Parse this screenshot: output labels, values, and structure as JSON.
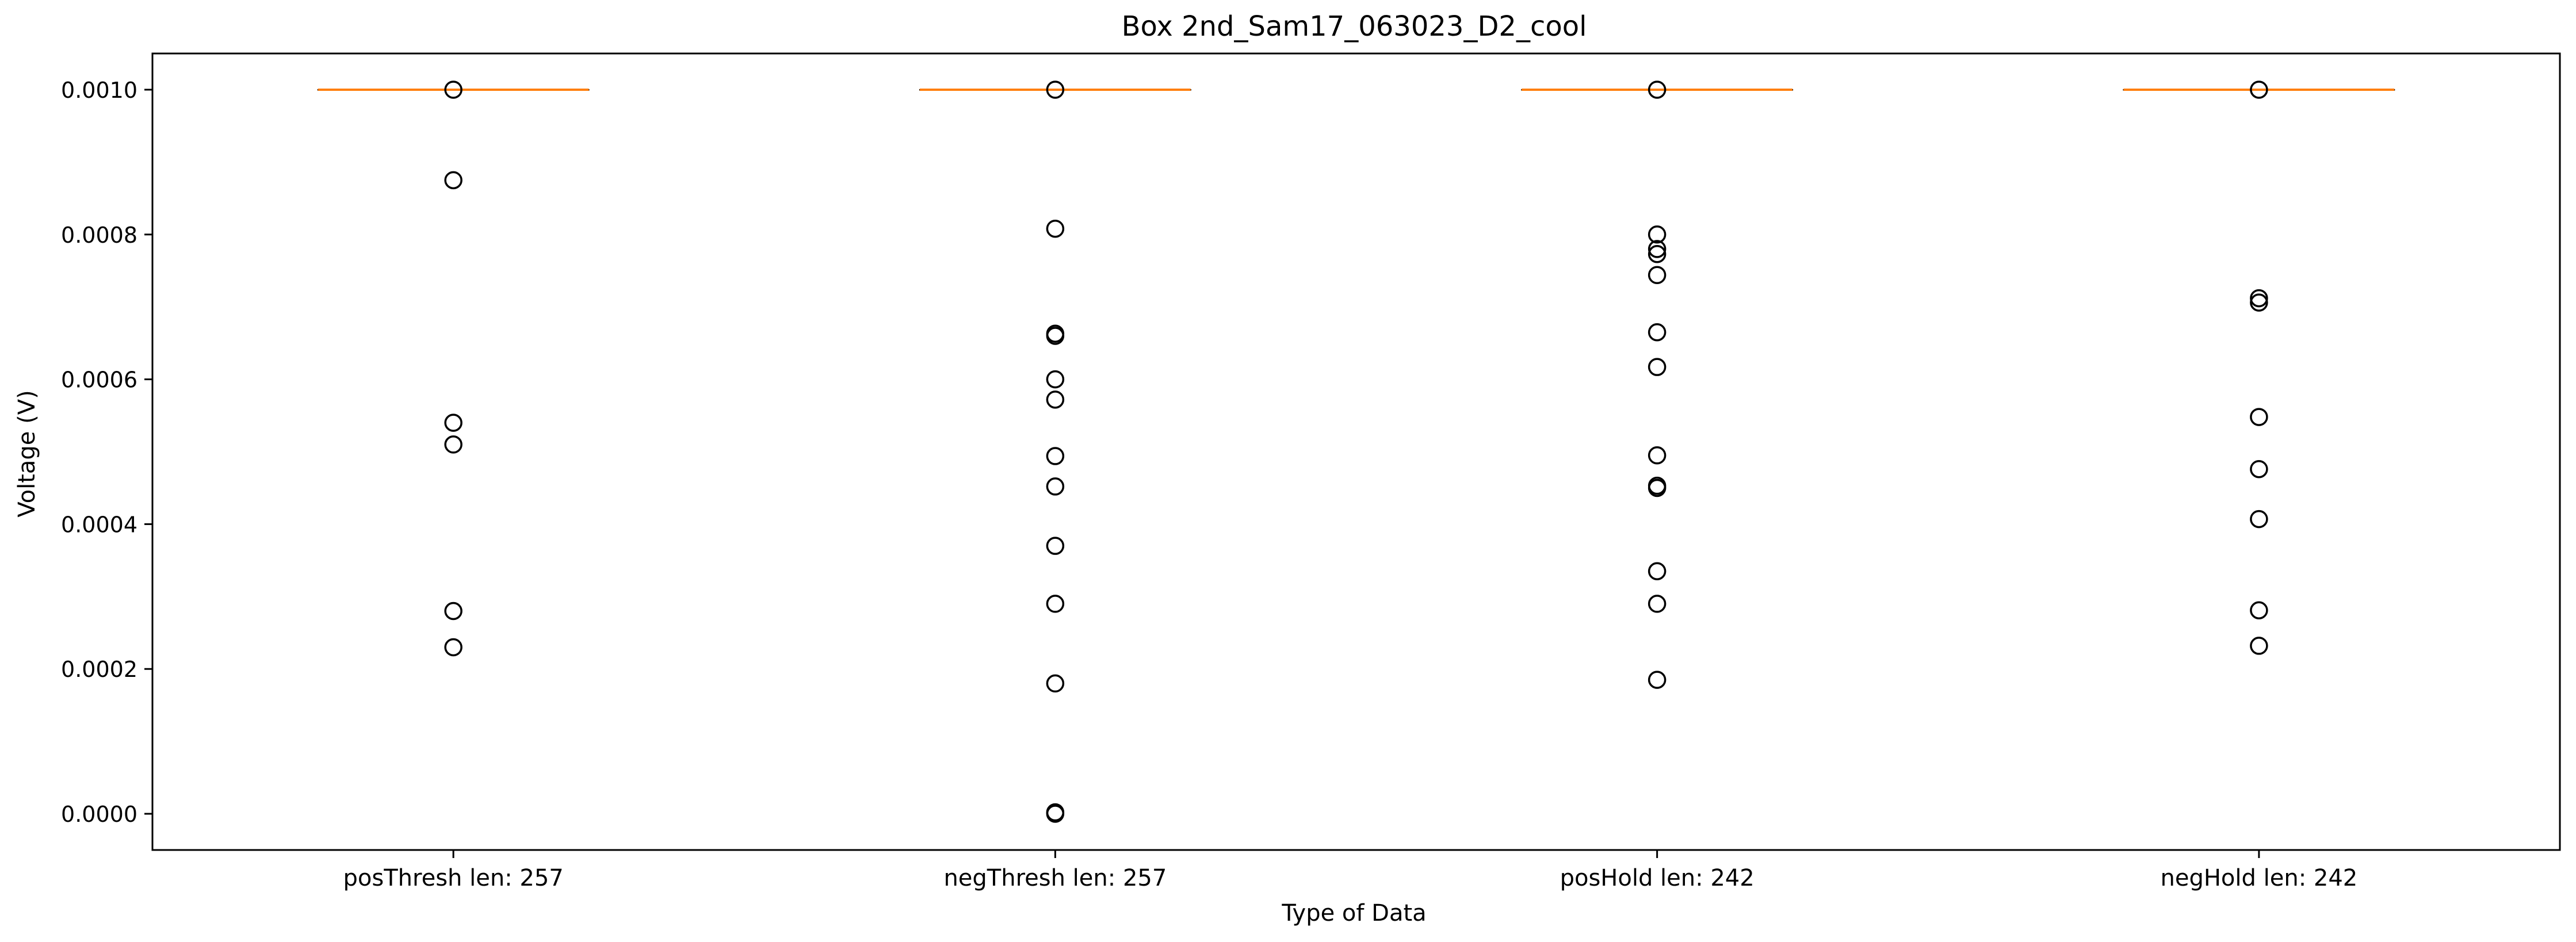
{
  "chart_data": {
    "type": "box",
    "title": "Box 2nd_Sam17_063023_D2_cool",
    "xlabel": "Type of Data",
    "ylabel": "Voltage (V)",
    "ylim": [
      -5e-05,
      0.00105
    ],
    "yticks": [
      0.0,
      0.0002,
      0.0004,
      0.0006,
      0.0008,
      0.001
    ],
    "ytick_labels": [
      "0.0000",
      "0.0002",
      "0.0004",
      "0.0006",
      "0.0008",
      "0.0010"
    ],
    "grid": false,
    "categories": [
      "posThresh len: 257",
      "negThresh len: 257",
      "posHold len: 242",
      "negHold len: 242"
    ],
    "boxes": [
      {
        "category": "posThresh len: 257",
        "median": 0.001,
        "q1": 0.001,
        "q3": 0.001,
        "whisker_low": 0.001,
        "whisker_high": 0.001
      },
      {
        "category": "negThresh len: 257",
        "median": 0.001,
        "q1": 0.001,
        "q3": 0.001,
        "whisker_low": 0.001,
        "whisker_high": 0.001
      },
      {
        "category": "posHold len: 242",
        "median": 0.001,
        "q1": 0.001,
        "q3": 0.001,
        "whisker_low": 0.001,
        "whisker_high": 0.001
      },
      {
        "category": "negHold len: 242",
        "median": 0.001,
        "q1": 0.001,
        "q3": 0.001,
        "whisker_low": 0.001,
        "whisker_high": 0.001
      }
    ],
    "outliers": [
      [
        0.001,
        0.000875,
        0.00054,
        0.00051,
        0.00028,
        0.00023
      ],
      [
        0.001,
        0.000808,
        0.000663,
        0.00066,
        0.0006,
        0.000572,
        0.000494,
        0.000452,
        0.00037,
        0.00029,
        0.00018,
        2e-06,
        0.0
      ],
      [
        0.001,
        0.0008,
        0.00078,
        0.000773,
        0.000744,
        0.000665,
        0.000617,
        0.000495,
        0.000453,
        0.00045,
        0.000335,
        0.00029,
        0.000185
      ],
      [
        0.001,
        0.000712,
        0.000706,
        0.000548,
        0.000476,
        0.000407,
        0.000281,
        0.000232
      ]
    ],
    "colors": {
      "median": "#ff7f0e",
      "outlier_edge": "#000000",
      "axes": "#000000"
    }
  }
}
